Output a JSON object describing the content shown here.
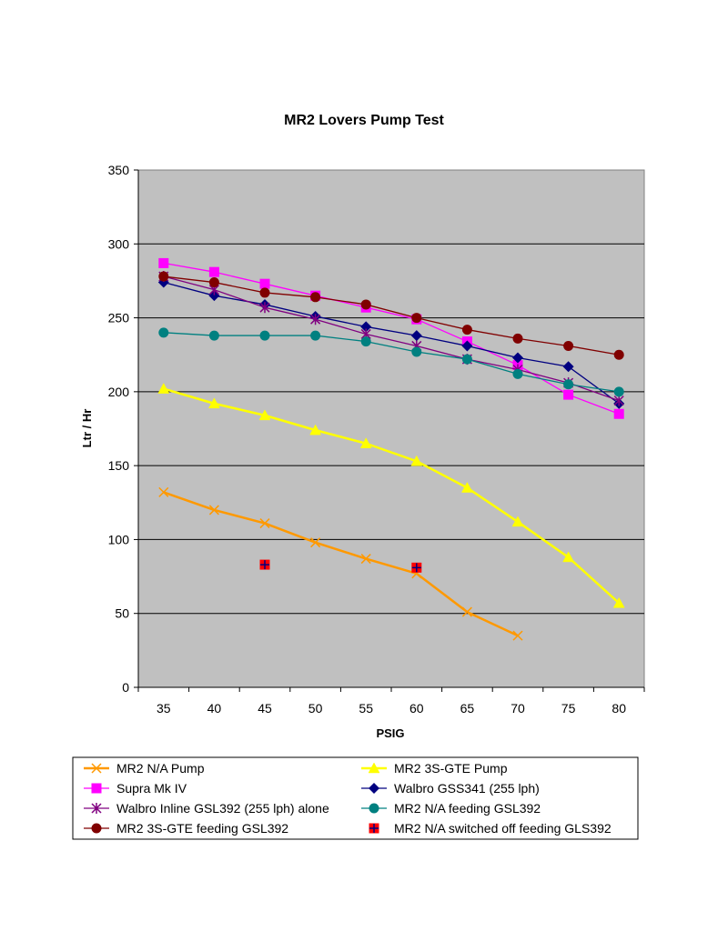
{
  "chart_data": {
    "type": "line",
    "title": "MR2 Lovers Pump Test",
    "xlabel": "PSIG",
    "ylabel": "Ltr / Hr",
    "categories": [
      "35",
      "40",
      "45",
      "50",
      "55",
      "60",
      "65",
      "70",
      "75",
      "80"
    ],
    "ylim": [
      0,
      350
    ],
    "yticks": [
      "0",
      "50",
      "100",
      "150",
      "200",
      "250",
      "300",
      "350"
    ],
    "grid": "horizontal",
    "legend_position": "bottom",
    "series": [
      {
        "name": "MR2 N/A Pump",
        "color": "#FF9900",
        "marker": "x",
        "values": [
          132,
          120,
          111,
          98,
          87,
          77,
          51,
          35,
          null,
          null
        ]
      },
      {
        "name": "MR2 3S-GTE Pump",
        "color": "#FFFF00",
        "marker": "triangle",
        "values": [
          202,
          192,
          184,
          174,
          165,
          153,
          135,
          112,
          88,
          57
        ]
      },
      {
        "name": "Supra   Mk IV",
        "color": "#FF00FF",
        "marker": "square",
        "values": [
          287,
          281,
          273,
          265,
          257,
          249,
          234,
          218,
          198,
          185
        ]
      },
      {
        "name": "Walbro GSS341 (255 lph)",
        "color": "#000080",
        "marker": "diamond",
        "values": [
          274,
          265,
          259,
          251,
          244,
          238,
          231,
          223,
          217,
          192
        ]
      },
      {
        "name": "Walbro Inline GSL392 (255 lph) alone",
        "color": "#800080",
        "marker": "star",
        "values": [
          278,
          269,
          257,
          249,
          239,
          231,
          222,
          215,
          206,
          194
        ]
      },
      {
        "name": "MR2 N/A feeding GSL392",
        "color": "#008080",
        "marker": "circle",
        "values": [
          240,
          238,
          238,
          238,
          234,
          227,
          222,
          212,
          205,
          200
        ]
      },
      {
        "name": "MR2 3S-GTE feeding GSL392",
        "color": "#800000",
        "marker": "circle",
        "values": [
          278,
          274,
          267,
          264,
          259,
          250,
          242,
          236,
          231,
          225
        ]
      },
      {
        "name": "MR2 N/A switched off feeding GLS392",
        "color": "#FF0000",
        "marker": "plus-square",
        "line": false,
        "values": [
          null,
          null,
          83,
          null,
          null,
          81,
          null,
          null,
          null,
          null
        ]
      }
    ]
  }
}
